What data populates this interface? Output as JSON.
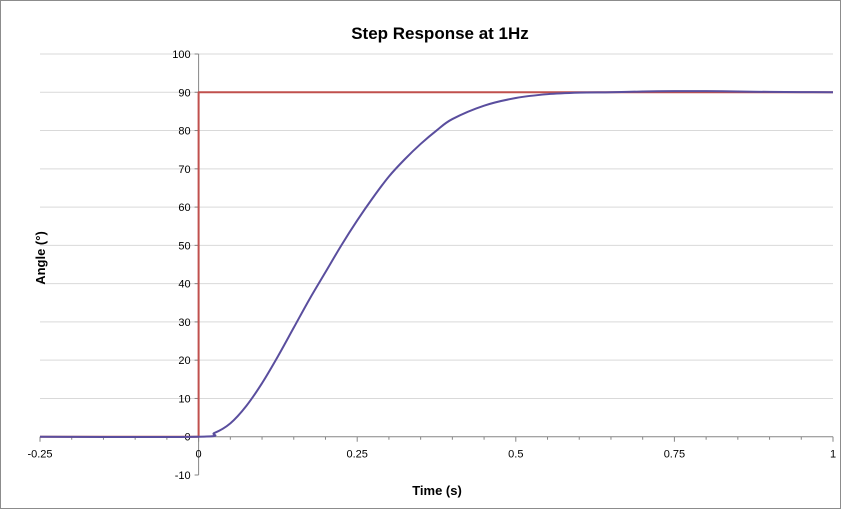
{
  "chart_data": {
    "type": "line",
    "title": "Step Response at 1Hz",
    "xlabel": "Time (s)",
    "ylabel": "Angle (°)",
    "xlim": [
      -0.25,
      1
    ],
    "ylim": [
      -10,
      100
    ],
    "x_ticks": [
      "-0.25",
      "0",
      "0.25",
      "0.5",
      "0.75",
      "1"
    ],
    "y_ticks": [
      "-10",
      "0",
      "10",
      "20",
      "30",
      "40",
      "50",
      "60",
      "70",
      "80",
      "90",
      "100"
    ],
    "grid": "horizontal",
    "legend": "none",
    "series": [
      {
        "color": "#c0504d",
        "x": [
          -0.25,
          0,
          0,
          1
        ],
        "y": [
          0,
          0,
          90,
          90
        ]
      },
      {
        "color": "#5a4e9e",
        "x": [
          -0.25,
          0,
          0.025,
          0.05,
          0.075,
          0.1,
          0.125,
          0.15,
          0.175,
          0.2,
          0.225,
          0.25,
          0.275,
          0.3,
          0.325,
          0.35,
          0.375,
          0.4,
          0.45,
          0.5,
          0.55,
          0.6,
          0.65,
          0.7,
          0.75,
          0.8,
          0.85,
          0.9,
          0.95,
          1.0
        ],
        "y": [
          0,
          0,
          1,
          3.5,
          8,
          14,
          21,
          28.5,
          36,
          43,
          50,
          56.5,
          62.5,
          68,
          72.5,
          76.5,
          80,
          83,
          86.5,
          88.5,
          89.5,
          89.9,
          90,
          90.2,
          90.3,
          90.3,
          90.2,
          90.1,
          90.05,
          90
        ]
      }
    ]
  }
}
